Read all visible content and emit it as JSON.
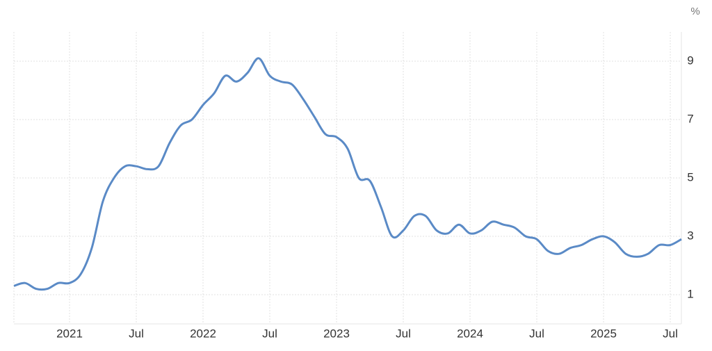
{
  "chart_data": {
    "type": "line",
    "ylabel": "%",
    "x": [
      "2020-08",
      "2020-09",
      "2020-10",
      "2020-11",
      "2020-12",
      "2021-01",
      "2021-02",
      "2021-03",
      "2021-04",
      "2021-05",
      "2021-06",
      "2021-07",
      "2021-08",
      "2021-09",
      "2021-10",
      "2021-11",
      "2021-12",
      "2022-01",
      "2022-02",
      "2022-03",
      "2022-04",
      "2022-05",
      "2022-06",
      "2022-07",
      "2022-08",
      "2022-09",
      "2022-10",
      "2022-11",
      "2022-12",
      "2023-01",
      "2023-02",
      "2023-03",
      "2023-04",
      "2023-05",
      "2023-06",
      "2023-07",
      "2023-08",
      "2023-09",
      "2023-10",
      "2023-11",
      "2023-12",
      "2024-01",
      "2024-02",
      "2024-03",
      "2024-04",
      "2024-05",
      "2024-06",
      "2024-07",
      "2024-08",
      "2024-09",
      "2024-10",
      "2024-11",
      "2024-12",
      "2025-01",
      "2025-02",
      "2025-03",
      "2025-04",
      "2025-05",
      "2025-06",
      "2025-07",
      "2025-08"
    ],
    "series": [
      {
        "color": "#5a8ac6",
        "values": [
          1.3,
          1.4,
          1.2,
          1.2,
          1.4,
          1.4,
          1.7,
          2.6,
          4.2,
          5.0,
          5.4,
          5.4,
          5.3,
          5.4,
          6.2,
          6.8,
          7.0,
          7.5,
          7.9,
          8.5,
          8.3,
          8.6,
          9.1,
          8.5,
          8.3,
          8.2,
          7.7,
          7.1,
          6.5,
          6.4,
          6.0,
          5.0,
          4.9,
          4.0,
          3.0,
          3.2,
          3.7,
          3.7,
          3.2,
          3.1,
          3.4,
          3.1,
          3.2,
          3.5,
          3.4,
          3.3,
          3.0,
          2.9,
          2.5,
          2.4,
          2.6,
          2.7,
          2.9,
          3.0,
          2.8,
          2.4,
          2.3,
          2.4,
          2.7,
          2.7,
          2.9
        ]
      }
    ],
    "xlim": [
      "2020-08",
      "2025-08"
    ],
    "xticks": [
      {
        "value": "2021-01",
        "label": "2021"
      },
      {
        "value": "2021-07",
        "label": "Jul"
      },
      {
        "value": "2022-01",
        "label": "2022"
      },
      {
        "value": "2022-07",
        "label": "Jul"
      },
      {
        "value": "2023-01",
        "label": "2023"
      },
      {
        "value": "2023-07",
        "label": "Jul"
      },
      {
        "value": "2024-01",
        "label": "2024"
      },
      {
        "value": "2024-07",
        "label": "Jul"
      },
      {
        "value": "2025-01",
        "label": "2025"
      },
      {
        "value": "2025-07",
        "label": "Jul"
      }
    ],
    "ylim": [
      0,
      10
    ],
    "yticks": [
      1,
      3,
      5,
      7,
      9
    ],
    "grid": true
  }
}
